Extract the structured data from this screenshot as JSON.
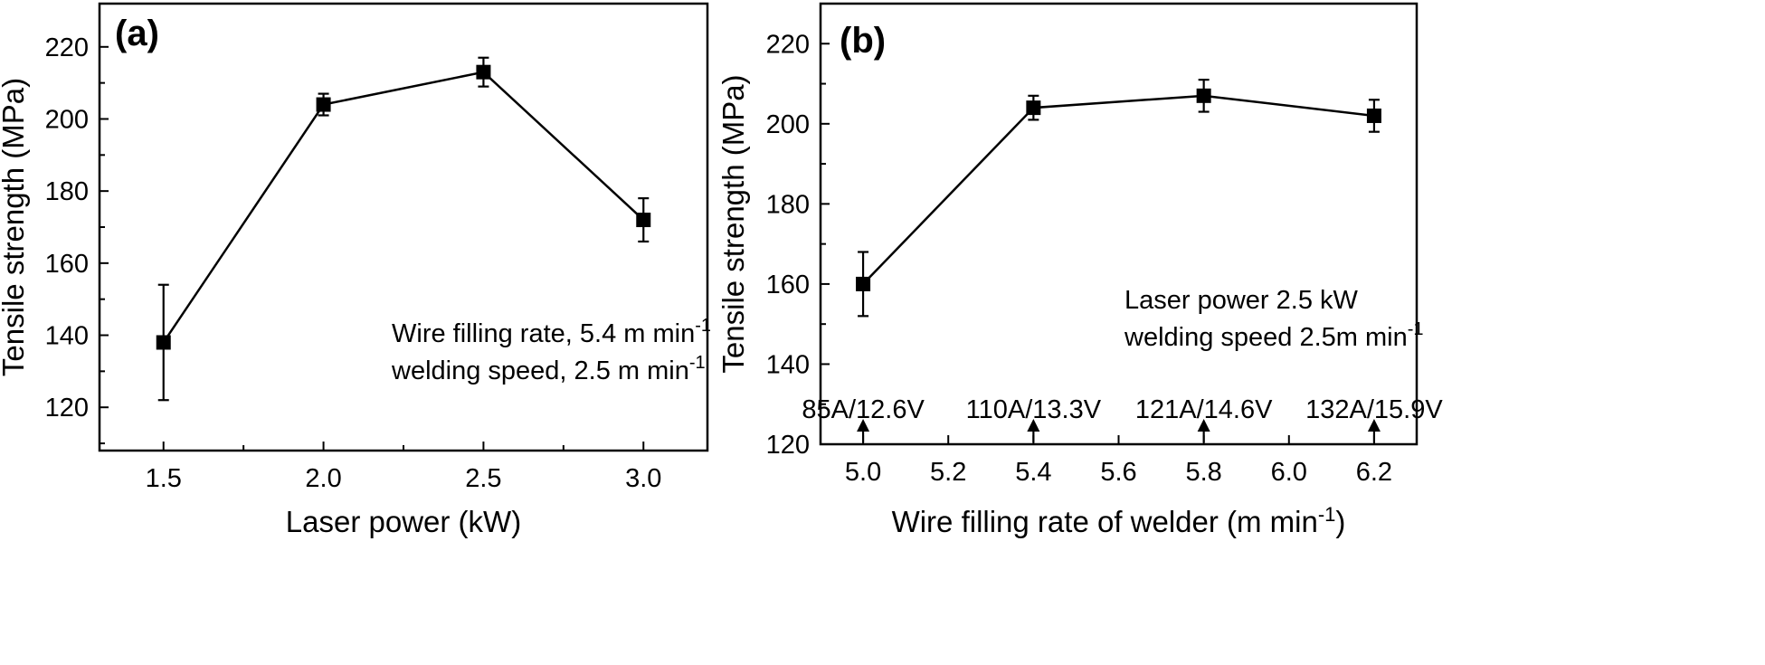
{
  "chart_data": [
    {
      "type": "line",
      "panel_label": "(a)",
      "xlabel": "Laser power (kW)",
      "ylabel": "Tensile strength (MPa)",
      "xlim": [
        1.3,
        3.2
      ],
      "ylim": [
        108,
        232
      ],
      "xticks": [
        1.5,
        2.0,
        2.5,
        3.0
      ],
      "xtick_labels": [
        "1.5",
        "2.0",
        "2.5",
        "3.0"
      ],
      "yticks": [
        120,
        140,
        160,
        180,
        200,
        220
      ],
      "ytick_labels": [
        "120",
        "140",
        "160",
        "180",
        "200",
        "220"
      ],
      "x": [
        1.5,
        2.0,
        2.5,
        3.0
      ],
      "values": [
        138,
        204,
        213,
        172
      ],
      "error": [
        16,
        3,
        4,
        6
      ],
      "annotation_lines": [
        {
          "text": "Wire filling rate, 5.4 m min",
          "sup": "-1"
        },
        {
          "text": "welding speed, 2.5 m min",
          "sup": "-1"
        }
      ],
      "point_labels": []
    },
    {
      "type": "line",
      "panel_label": "(b)",
      "xlabel": "Wire filling rate of welder (m min",
      "xlabel_sup": "-1",
      "xlabel_suffix": ")",
      "ylabel": "Tensile strength (MPa)",
      "xlim": [
        4.9,
        6.3
      ],
      "ylim": [
        120,
        230
      ],
      "xticks": [
        5.0,
        5.2,
        5.4,
        5.6,
        5.8,
        6.0,
        6.2
      ],
      "xtick_labels": [
        "5.0",
        "5.2",
        "5.4",
        "5.6",
        "5.8",
        "6.0",
        "6.2"
      ],
      "yticks": [
        120,
        140,
        160,
        180,
        200,
        220
      ],
      "ytick_labels": [
        "120",
        "140",
        "160",
        "180",
        "200",
        "220"
      ],
      "x": [
        5.0,
        5.4,
        5.8,
        6.2
      ],
      "values": [
        160,
        204,
        207,
        202
      ],
      "error": [
        8,
        3,
        4,
        4
      ],
      "annotation_lines": [
        {
          "text": "Laser power 2.5 kW",
          "sup": ""
        },
        {
          "text": "welding speed 2.5m min",
          "sup": "-1"
        }
      ],
      "point_labels": [
        "85A/12.6V",
        "110A/13.3V",
        "121A/14.6V",
        "132A/15.9V"
      ]
    }
  ]
}
